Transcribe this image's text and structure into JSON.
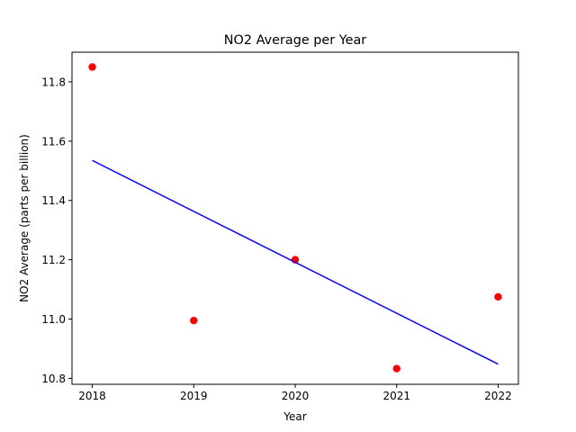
{
  "chart_data": {
    "type": "scatter",
    "title": "NO2 Average per Year",
    "xlabel": "Year",
    "ylabel": "NO2 Average (parts per billion)",
    "xlim": [
      2017.8,
      2022.2
    ],
    "ylim": [
      10.78,
      11.9
    ],
    "xticks": [
      2018,
      2019,
      2020,
      2021,
      2022
    ],
    "xtick_labels": [
      "2018",
      "2019",
      "2020",
      "2021",
      "2022"
    ],
    "yticks": [
      10.8,
      11.0,
      11.2,
      11.4,
      11.6,
      11.8
    ],
    "ytick_labels": [
      "10.8",
      "11.0",
      "11.2",
      "11.4",
      "11.6",
      "11.8"
    ],
    "grid": false,
    "series": [
      {
        "kind": "scatter",
        "color": "#ff0000",
        "x": [
          2018,
          2019,
          2020,
          2021,
          2022
        ],
        "y": [
          11.85,
          10.995,
          11.2,
          10.833,
          11.075
        ]
      },
      {
        "kind": "line",
        "color": "#0000ff",
        "x": [
          2018,
          2022
        ],
        "y": [
          11.535,
          10.848
        ]
      }
    ]
  }
}
